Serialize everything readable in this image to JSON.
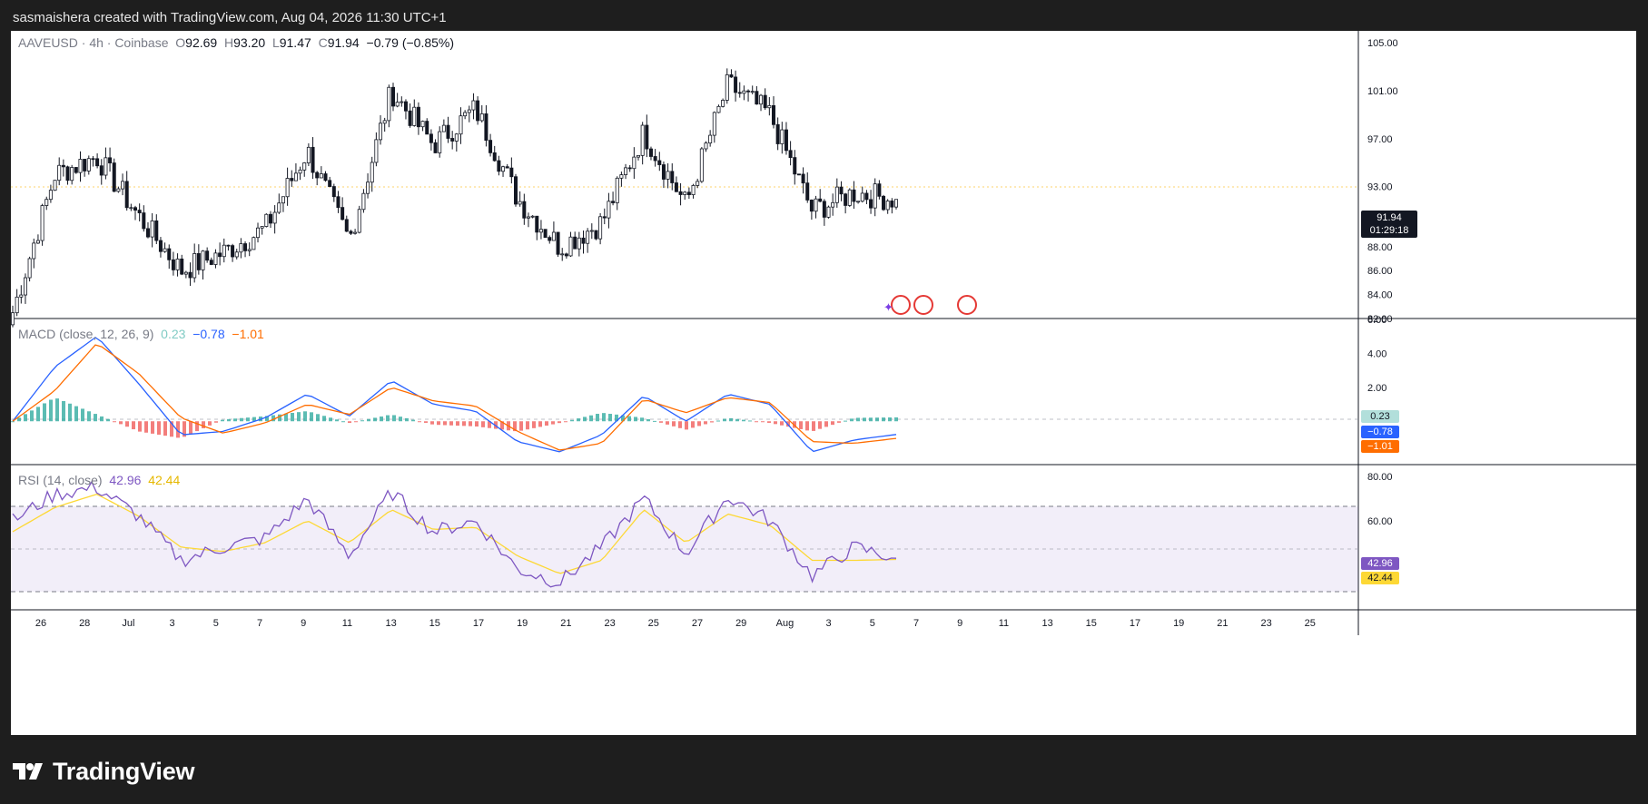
{
  "header": {
    "caption": "sasmaishera created with TradingView.com, Aug 04, 2026 11:30 UTC+1"
  },
  "main_legend": {
    "symbol": "AAVEUSD · 4h · Coinbase",
    "o_label": "O",
    "o": "92.69",
    "h_label": "H",
    "h": "93.20",
    "l_label": "L",
    "l": "91.47",
    "c_label": "C",
    "c": "91.94",
    "change": "−0.79 (−0.85%)"
  },
  "macd_legend": {
    "name": "MACD (close, 12, 26, 9)",
    "hist": "0.23",
    "macd": "−0.78",
    "signal": "−1.01"
  },
  "rsi_legend": {
    "name": "RSI (14, close)",
    "rsi": "42.96",
    "ma": "42.44"
  },
  "price_scale": [
    "105.00",
    "101.00",
    "97.00",
    "93.00",
    "90.00",
    "88.00",
    "86.00",
    "84.00",
    "82.00"
  ],
  "macd_scale": [
    "6.00",
    "4.00",
    "2.00"
  ],
  "rsi_scale": [
    "80.00",
    "60.00"
  ],
  "price_label": {
    "value": "91.94",
    "countdown": "01:29:18"
  },
  "macd_labels": {
    "hist": "0.23",
    "macd": "−0.78",
    "signal": "−1.01"
  },
  "rsi_labels": {
    "rsi": "42.96",
    "ma": "42.44"
  },
  "time_axis": [
    "26",
    "28",
    "Jul",
    "3",
    "5",
    "7",
    "9",
    "11",
    "13",
    "15",
    "17",
    "19",
    "21",
    "23",
    "25",
    "27",
    "29",
    "Aug",
    "3",
    "5",
    "7",
    "9",
    "11",
    "13",
    "15",
    "17",
    "19",
    "21",
    "23",
    "25"
  ],
  "colors": {
    "up": "#131722",
    "down": "#131722",
    "macd": "#2962ff",
    "signal": "#ff6d00",
    "rsi": "#7e57c2",
    "rsi_ma": "#fdd835",
    "hist_pos": "#26a69a",
    "hist_neg": "#ef5350"
  },
  "brand": {
    "name": "TradingView"
  },
  "chart_data": [
    {
      "type": "candlestick",
      "title": "AAVEUSD · 4h · Coinbase",
      "ylim": [
        82,
        106
      ],
      "x": [
        "Jun 24",
        "Jun 26",
        "Jun 28",
        "Jun 30",
        "Jul 2",
        "Jul 4",
        "Jul 6",
        "Jul 8",
        "Jul 10",
        "Jul 12",
        "Jul 14",
        "Jul 16",
        "Jul 18",
        "Jul 20",
        "Jul 22",
        "Jul 24",
        "Jul 26",
        "Jul 28",
        "Jul 30",
        "Aug 1",
        "Aug 3",
        "Aug 4"
      ],
      "close": [
        82.5,
        94.0,
        95.5,
        90.5,
        86.0,
        87.5,
        89.5,
        96.0,
        88.5,
        101.0,
        96.5,
        99.5,
        92.0,
        88.0,
        90.0,
        97.5,
        91.5,
        101.5,
        99.0,
        91.0,
        92.5,
        91.94
      ]
    },
    {
      "type": "line",
      "title": "MACD (close, 12, 26, 9)",
      "ylim": [
        -2.5,
        6
      ],
      "x": [
        "Jun 24",
        "Jun 26",
        "Jun 28",
        "Jun 30",
        "Jul 2",
        "Jul 4",
        "Jul 6",
        "Jul 8",
        "Jul 10",
        "Jul 12",
        "Jul 14",
        "Jul 16",
        "Jul 18",
        "Jul 20",
        "Jul 22",
        "Jul 24",
        "Jul 26",
        "Jul 28",
        "Jul 30",
        "Aug 1",
        "Aug 3",
        "Aug 4"
      ],
      "series": [
        {
          "name": "MACD",
          "values": [
            0.0,
            3.2,
            5.0,
            2.2,
            -0.8,
            -0.6,
            0.2,
            1.6,
            0.3,
            2.4,
            1.0,
            0.6,
            -1.2,
            -1.8,
            -0.8,
            1.5,
            0.0,
            1.6,
            1.0,
            -1.8,
            -1.1,
            -0.78
          ]
        },
        {
          "name": "Signal",
          "values": [
            0.0,
            1.8,
            4.6,
            2.8,
            0.2,
            -0.7,
            -0.1,
            1.0,
            0.4,
            2.0,
            1.2,
            0.9,
            -0.6,
            -1.7,
            -1.3,
            1.3,
            0.5,
            1.4,
            1.1,
            -1.2,
            -1.3,
            -1.01
          ]
        }
      ]
    },
    {
      "type": "line",
      "title": "RSI (14, close)",
      "ylim": [
        20,
        85
      ],
      "x": [
        "Jun 24",
        "Jun 26",
        "Jun 28",
        "Jun 30",
        "Jul 2",
        "Jul 4",
        "Jul 6",
        "Jul 8",
        "Jul 10",
        "Jul 12",
        "Jul 14",
        "Jul 16",
        "Jul 18",
        "Jul 20",
        "Jul 22",
        "Jul 24",
        "Jul 26",
        "Jul 28",
        "Jul 30",
        "Aug 1",
        "Aug 3",
        "Aug 4"
      ],
      "series": [
        {
          "name": "RSI",
          "values": [
            60,
            72,
            75,
            62,
            42,
            48,
            52,
            70,
            44,
            73,
            55,
            60,
            38,
            32,
            48,
            70,
            45,
            71,
            60,
            35,
            48,
            42.96
          ]
        },
        {
          "name": "RSI-based MA",
          "values": [
            55,
            66,
            72,
            62,
            48,
            46,
            50,
            60,
            50,
            65,
            56,
            57,
            44,
            36,
            42,
            65,
            50,
            63,
            58,
            42,
            42,
            42.44
          ]
        }
      ],
      "bands": [
        30,
        50,
        70
      ]
    }
  ]
}
